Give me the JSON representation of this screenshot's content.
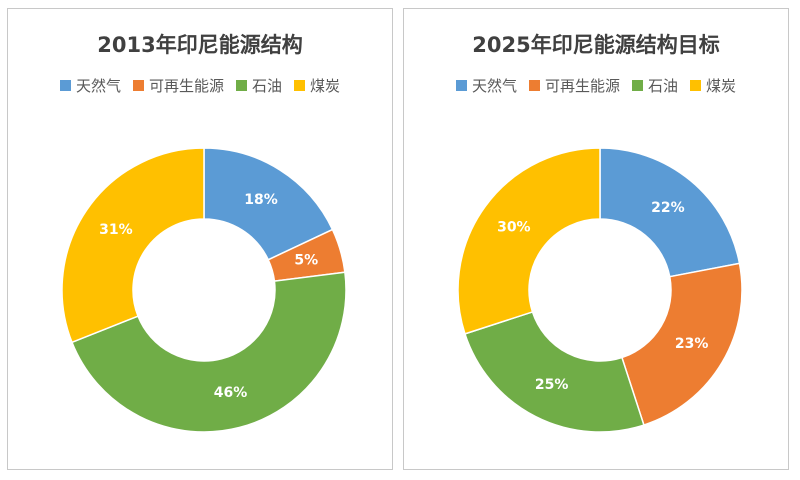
{
  "chart_data": [
    {
      "type": "pie",
      "title": "2013年印尼能源结构",
      "categories": [
        "天然气",
        "可再生能源",
        "石油",
        "煤炭"
      ],
      "values": [
        18,
        5,
        46,
        31
      ],
      "labels": [
        "18%",
        "5%",
        "46%",
        "31%"
      ],
      "colors": [
        "#5b9bd5",
        "#ed7d31",
        "#70ad47",
        "#ffc000"
      ],
      "donut": true,
      "legend": "top"
    },
    {
      "type": "pie",
      "title": "2025年印尼能源结构目标",
      "categories": [
        "天然气",
        "可再生能源",
        "石油",
        "煤炭"
      ],
      "values": [
        22,
        23,
        25,
        30
      ],
      "labels": [
        "22%",
        "23%",
        "25%",
        "30%"
      ],
      "colors": [
        "#5b9bd5",
        "#ed7d31",
        "#70ad47",
        "#ffc000"
      ],
      "donut": true,
      "legend": "top"
    }
  ]
}
